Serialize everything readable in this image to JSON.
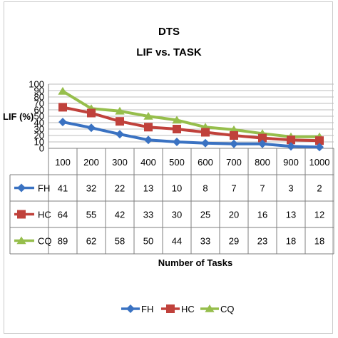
{
  "chart_data": {
    "type": "line",
    "title": "DTS",
    "subtitle": "LIF vs. TASK",
    "ylabel": "LIF (%)",
    "xlabel": "Number of Tasks",
    "ylim": [
      0,
      100
    ],
    "yticks": [
      0,
      10,
      20,
      30,
      40,
      50,
      60,
      70,
      80,
      90,
      100
    ],
    "categories": [
      "100",
      "200",
      "300",
      "400",
      "500",
      "600",
      "700",
      "800",
      "900",
      "1000"
    ],
    "grid": true,
    "legend_position": "bottom",
    "data_table": true,
    "series": [
      {
        "name": "FH",
        "color": "#3A72C2",
        "marker": "diamond",
        "values": [
          41,
          32,
          22,
          13,
          10,
          8,
          7,
          7,
          3,
          2
        ]
      },
      {
        "name": "HC",
        "color": "#C0413B",
        "marker": "square",
        "values": [
          64,
          55,
          42,
          33,
          30,
          25,
          20,
          16,
          13,
          12
        ]
      },
      {
        "name": "CQ",
        "color": "#96BE4C",
        "marker": "triangle",
        "values": [
          89,
          62,
          58,
          50,
          44,
          33,
          29,
          23,
          18,
          18
        ]
      }
    ]
  }
}
